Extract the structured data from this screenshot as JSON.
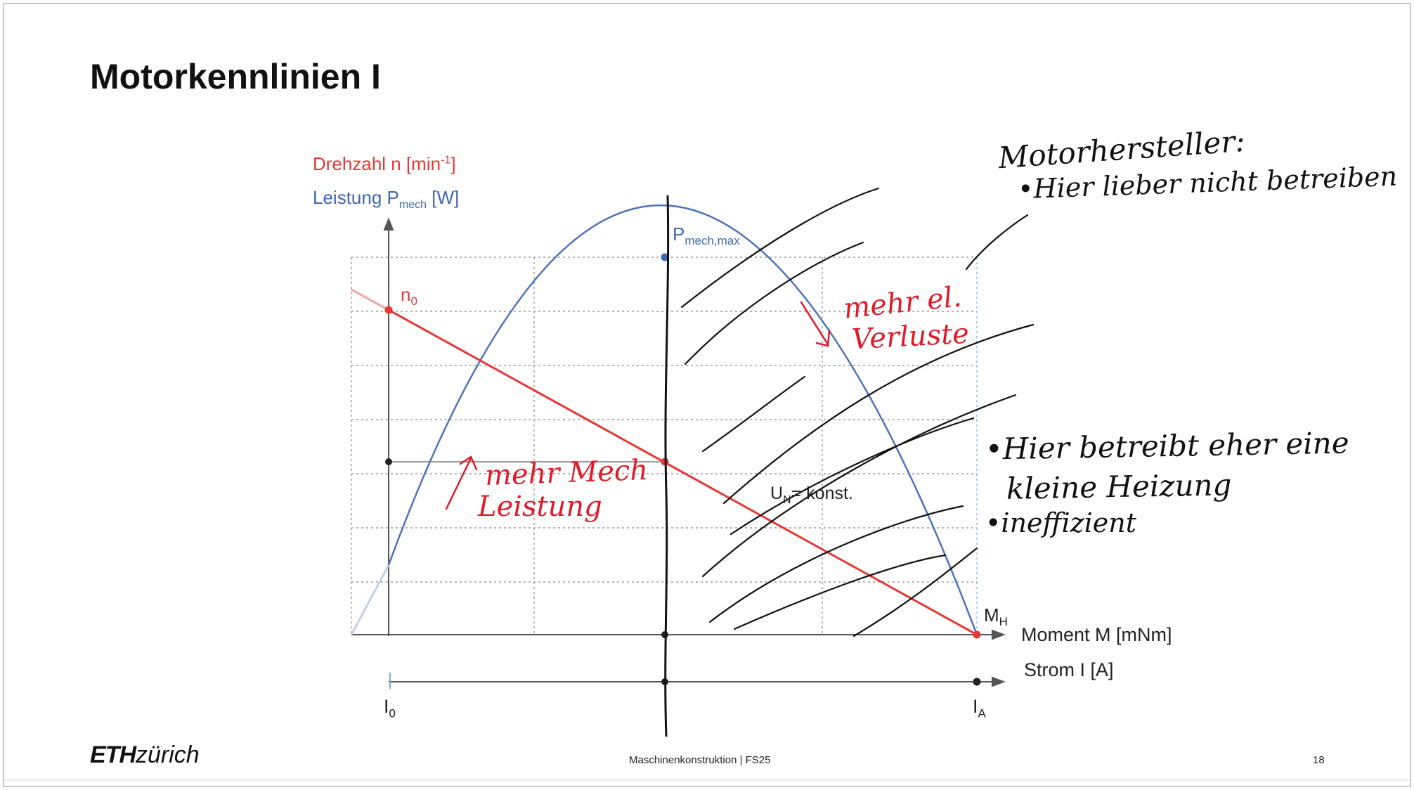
{
  "slide": {
    "title": "Motorkennlinien I",
    "page_number": "18",
    "footer_center": "Maschinenkonstruktion | FS25",
    "logo_bold": "ETH",
    "logo_light": "zürich"
  },
  "diagram": {
    "y_label_speed_main": "Drehzahl n [min",
    "y_label_speed_sup": "-1",
    "y_label_speed_end": "]",
    "y_label_power_main": "Leistung P",
    "y_label_power_sub": "mech",
    "y_label_power_end": " [W]",
    "pmax_main": "P",
    "pmax_sub": "mech,max",
    "n0_main": "n",
    "n0_sub": "0",
    "mh_main": "M",
    "mh_sub": "H",
    "un_main": "U",
    "un_sub": "N",
    "un_end": "= konst.",
    "x_axis_moment": "Moment M [mNm]",
    "x_axis_current": "Strom I [A]",
    "i0_main": "I",
    "i0_sub": "0",
    "ia_main": "I",
    "ia_sub": "A"
  },
  "annotations": {
    "manufacturer_title": "Motorhersteller:",
    "manufacturer_note": "•Hier lieber nicht betreiben",
    "heater_note_1": "•Hier betreibt eher eine",
    "heater_note_2": "kleine Heizung",
    "inefficient": "•ineffizient",
    "more_losses_1": "mehr el.",
    "more_losses_2": "Verluste",
    "more_power_1": "mehr Mech",
    "more_power_2": "Leistung"
  },
  "colors": {
    "speed_line": "#e53935",
    "power_curve": "#4a72bd",
    "handwriting_black": "#111111",
    "handwriting_red": "#e01b2a",
    "grid": "#9a9a9a"
  }
}
